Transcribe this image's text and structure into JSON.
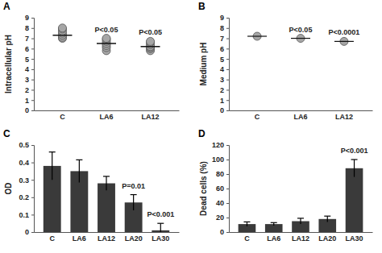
{
  "chart_data": [
    {
      "type": "scatter",
      "title": "A",
      "y_label": "Intracellular pH",
      "categories": [
        "C",
        "LA6",
        "LA12"
      ],
      "points": [
        [
          7.0,
          7.1,
          7.3,
          7.5,
          7.7,
          7.9,
          8.0
        ],
        [
          5.8,
          6.1,
          6.3,
          6.5,
          6.7,
          6.9,
          7.0
        ],
        [
          5.8,
          6.0,
          6.1,
          6.2,
          6.4,
          6.6,
          6.7
        ]
      ],
      "means": [
        7.3,
        6.5,
        6.2
      ],
      "color": "#a6a6a6",
      "ylim": [
        0,
        9
      ],
      "yticks": [
        0,
        1,
        2,
        3,
        4,
        5,
        6,
        7,
        8,
        9
      ],
      "annotations": [
        {
          "text": "P<0.05",
          "category": "LA6"
        },
        {
          "text": "P<0.05",
          "category": "LA12"
        }
      ]
    },
    {
      "type": "scatter",
      "title": "B",
      "y_label": "Medium pH",
      "categories": [
        "C",
        "LA6",
        "LA12"
      ],
      "values": [
        7.2,
        7.0,
        6.7
      ],
      "color": "#a6a6a6",
      "ylim": [
        0,
        9
      ],
      "yticks": [
        0,
        1,
        2,
        3,
        4,
        5,
        6,
        7,
        8,
        9
      ],
      "annotations": [
        {
          "text": "P<0.05",
          "category": "LA6"
        },
        {
          "text": "P<0.0001",
          "category": "LA12"
        }
      ]
    },
    {
      "type": "bar",
      "title": "C",
      "y_label": "OD",
      "categories": [
        "C",
        "LA6",
        "LA12",
        "LA20",
        "LA30"
      ],
      "values": [
        0.38,
        0.35,
        0.28,
        0.17,
        0.01
      ],
      "errors": [
        0.08,
        0.065,
        0.04,
        0.045,
        0.04
      ],
      "color": "#3a3a3a",
      "ylim": [
        0,
        0.5
      ],
      "yticks": [
        0,
        0.1,
        0.2,
        0.3,
        0.4,
        0.5
      ],
      "annotations": [
        {
          "text": "P=0.01",
          "category": "LA20"
        },
        {
          "text": "P<0.001",
          "category": "LA30"
        }
      ]
    },
    {
      "type": "bar",
      "title": "D",
      "y_label": "Dead cells (%)",
      "categories": [
        "C",
        "LA6",
        "LA12",
        "LA20",
        "LA30"
      ],
      "values": [
        11,
        11,
        15,
        18,
        88
      ],
      "errors": [
        3,
        2,
        4,
        4,
        12
      ],
      "color": "#3a3a3a",
      "ylim": [
        0,
        120
      ],
      "yticks": [
        0,
        20,
        40,
        60,
        80,
        100,
        120
      ],
      "annotations": [
        {
          "text": "P<0.001",
          "category": "LA30"
        }
      ]
    }
  ]
}
